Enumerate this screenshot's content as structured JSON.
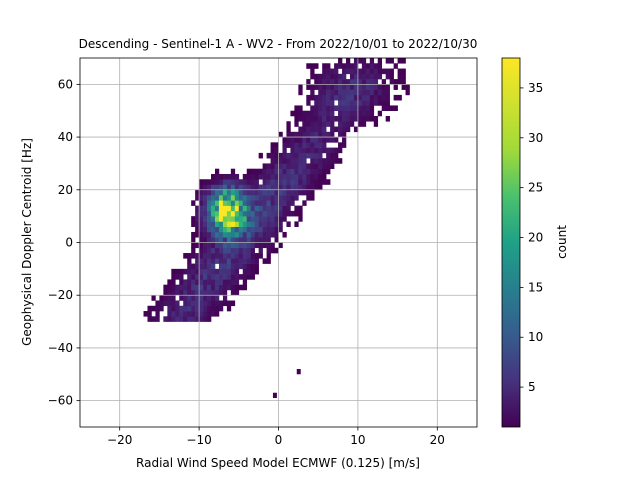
{
  "chart_data": {
    "type": "heatmap",
    "title": "Descending - Sentinel-1 A - WV2 - From 2022/10/01 to 2022/10/30",
    "xlabel": "Radial Wind Speed Model ECMWF (0.125) [m/s]",
    "ylabel": "Geophysical Doppler Centroid [Hz]",
    "xlim": [
      -25,
      25
    ],
    "ylim": [
      -70,
      70
    ],
    "xticks": [
      -20,
      -10,
      0,
      10,
      20
    ],
    "yticks": [
      -60,
      -40,
      -20,
      0,
      20,
      40,
      60
    ],
    "grid": true,
    "colormap": "viridis",
    "colorbar": {
      "label": "count",
      "range": [
        1,
        38
      ],
      "ticks": [
        5,
        10,
        15,
        20,
        25,
        30,
        35
      ]
    },
    "bin_size": {
      "x": 0.5,
      "y": 2
    },
    "density_model": {
      "main_cluster": {
        "slope_hz_per_ms": 3.7,
        "intercept_hz": 34,
        "along_spread": 5.5,
        "cross_spread": 6.5,
        "peak_count": 7
      },
      "hotspot": {
        "x": -6.5,
        "y": 12,
        "peak_count": 38
      },
      "outliers": [
        {
          "x": 2.3,
          "y": -50,
          "count": 1
        },
        {
          "x": -0.7,
          "y": -59,
          "count": 1
        }
      ]
    }
  }
}
